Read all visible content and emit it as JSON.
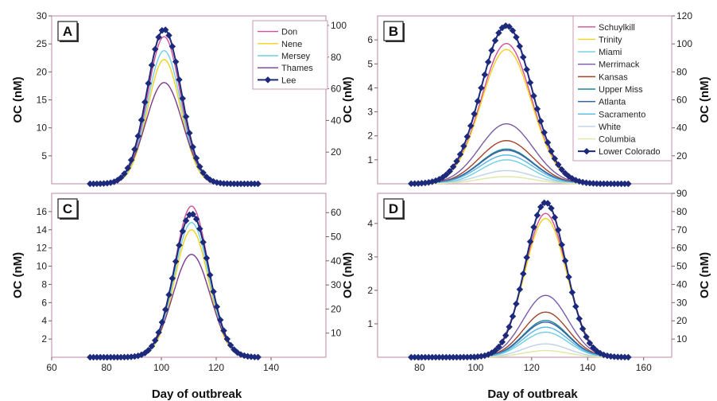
{
  "chart_data": [
    {
      "panel": "A",
      "type": "line",
      "xlabel": "",
      "ylabel": "OC (nM)",
      "xlim": [
        60,
        160
      ],
      "ylim": [
        0,
        30
      ],
      "y2lim": [
        0,
        106
      ],
      "yticks": [
        5,
        10,
        15,
        20,
        25,
        30
      ],
      "y2ticks": [
        20,
        40,
        60,
        80,
        100
      ],
      "xticks": [],
      "series": [
        {
          "name": "Don",
          "color": "#d24f9a",
          "axis": "left",
          "peak_x": 101,
          "peak": 26.3,
          "width": 6.0,
          "start": 74,
          "end": 136
        },
        {
          "name": "Nene",
          "color": "#f2d21e",
          "axis": "left",
          "peak_x": 101,
          "peak": 22.2,
          "width": 6.0,
          "start": 74,
          "end": 136
        },
        {
          "name": "Mersey",
          "color": "#6fcde6",
          "axis": "left",
          "peak_x": 101,
          "peak": 23.8,
          "width": 6.1,
          "start": 74,
          "end": 136
        },
        {
          "name": "Thames",
          "color": "#7a3c8c",
          "axis": "left",
          "peak_x": 101,
          "peak": 18.1,
          "width": 6.7,
          "start": 74,
          "end": 136
        },
        {
          "name": "Lee",
          "color": "#1d2a7c",
          "axis": "right",
          "peak_x": 101,
          "peak": 97.5,
          "width": 6.2,
          "start": 74,
          "end": 136,
          "markers": true
        }
      ]
    },
    {
      "panel": "B",
      "type": "line",
      "xlabel": "",
      "ylabel": "OC (nM)",
      "xlim": [
        65,
        170
      ],
      "ylim": [
        0,
        7
      ],
      "y2lim": [
        0,
        120
      ],
      "yticks": [
        1,
        2,
        3,
        4,
        5,
        6
      ],
      "y2ticks": [
        20,
        40,
        60,
        80,
        100,
        120
      ],
      "xticks": [],
      "series": [
        {
          "name": "Schuylkill",
          "color": "#d24f9a",
          "axis": "left",
          "peak_x": 111,
          "peak": 5.85,
          "width": 9.0,
          "start": 77,
          "end": 155
        },
        {
          "name": "Trinity",
          "color": "#f2d21e",
          "axis": "left",
          "peak_x": 111,
          "peak": 5.6,
          "width": 9.0,
          "start": 77,
          "end": 155
        },
        {
          "name": "Miami",
          "color": "#6fcde6",
          "axis": "left",
          "peak_x": 111,
          "peak": 1.0,
          "width": 9.0,
          "start": 77,
          "end": 155
        },
        {
          "name": "Merrimack",
          "color": "#7a5aa8",
          "axis": "left",
          "peak_x": 111,
          "peak": 2.5,
          "width": 9.5,
          "start": 77,
          "end": 155
        },
        {
          "name": "Kansas",
          "color": "#a4432b",
          "axis": "left",
          "peak_x": 111,
          "peak": 1.8,
          "width": 9.5,
          "start": 77,
          "end": 155
        },
        {
          "name": "Upper Miss",
          "color": "#1d8a94",
          "axis": "left",
          "peak_x": 111,
          "peak": 1.45,
          "width": 9.5,
          "start": 77,
          "end": 155
        },
        {
          "name": "Atlanta",
          "color": "#3a5fa8",
          "axis": "left",
          "peak_x": 111,
          "peak": 1.4,
          "width": 9.5,
          "start": 77,
          "end": 155
        },
        {
          "name": "Sacramento",
          "color": "#56b9e0",
          "axis": "left",
          "peak_x": 111,
          "peak": 1.2,
          "width": 9.5,
          "start": 77,
          "end": 155
        },
        {
          "name": "White",
          "color": "#bcd3e8",
          "axis": "left",
          "peak_x": 111,
          "peak": 0.55,
          "width": 9.5,
          "start": 77,
          "end": 155
        },
        {
          "name": "Columbia",
          "color": "#dfe7a6",
          "axis": "left",
          "peak_x": 111,
          "peak": 0.3,
          "width": 9.5,
          "start": 77,
          "end": 155
        },
        {
          "name": "Lower Colorado",
          "color": "#1d2a7c",
          "axis": "right",
          "peak_x": 111,
          "peak": 113,
          "width": 9.0,
          "start": 77,
          "end": 155,
          "markers": true
        }
      ]
    },
    {
      "panel": "C",
      "type": "line",
      "xlabel": "Day of outbreak",
      "ylabel": "OC (nM)",
      "xlim": [
        60,
        160
      ],
      "ylim": [
        0,
        18
      ],
      "y2lim": [
        0,
        68
      ],
      "yticks": [
        2,
        4,
        6,
        8,
        10,
        12,
        14,
        16
      ],
      "y2ticks": [
        10,
        20,
        30,
        40,
        50,
        60
      ],
      "xticks": [
        60,
        80,
        100,
        120,
        140
      ],
      "series": [
        {
          "name": "Don",
          "color": "#d24f9a",
          "axis": "left",
          "peak_x": 111,
          "peak": 16.6,
          "width": 6.2,
          "start": 74,
          "end": 136
        },
        {
          "name": "Nene",
          "color": "#f2d21e",
          "axis": "left",
          "peak_x": 111,
          "peak": 14.0,
          "width": 6.2,
          "start": 74,
          "end": 136
        },
        {
          "name": "Mersey",
          "color": "#6fcde6",
          "axis": "left",
          "peak_x": 111,
          "peak": 14.8,
          "width": 6.3,
          "start": 74,
          "end": 136
        },
        {
          "name": "Thames",
          "color": "#7a3c8c",
          "axis": "left",
          "peak_x": 111,
          "peak": 11.3,
          "width": 6.8,
          "start": 74,
          "end": 136
        },
        {
          "name": "Lee",
          "color": "#1d2a7c",
          "axis": "right",
          "peak_x": 111,
          "peak": 59.5,
          "width": 6.4,
          "start": 74,
          "end": 136,
          "markers": true
        }
      ]
    },
    {
      "panel": "D",
      "type": "line",
      "xlabel": "Day of outbreak",
      "ylabel": "OC (nM)",
      "xlim": [
        65,
        170
      ],
      "ylim": [
        0,
        4.9
      ],
      "y2lim": [
        0,
        90
      ],
      "yticks": [
        1,
        2,
        3,
        4
      ],
      "y2ticks": [
        10,
        20,
        30,
        40,
        50,
        60,
        70,
        80,
        90
      ],
      "xticks": [
        80,
        100,
        120,
        140,
        160
      ],
      "series": [
        {
          "name": "Schuylkill",
          "color": "#d24f9a",
          "axis": "left",
          "peak_x": 125,
          "peak": 4.3,
          "width": 7.5,
          "start": 77,
          "end": 155
        },
        {
          "name": "Trinity",
          "color": "#f2d21e",
          "axis": "left",
          "peak_x": 125,
          "peak": 4.15,
          "width": 7.5,
          "start": 77,
          "end": 155
        },
        {
          "name": "Miami",
          "color": "#6fcde6",
          "axis": "left",
          "peak_x": 125,
          "peak": 0.75,
          "width": 8.0,
          "start": 77,
          "end": 155
        },
        {
          "name": "Merrimack",
          "color": "#7a5aa8",
          "axis": "left",
          "peak_x": 125,
          "peak": 1.85,
          "width": 8.0,
          "start": 77,
          "end": 155
        },
        {
          "name": "Kansas",
          "color": "#a4432b",
          "axis": "left",
          "peak_x": 125,
          "peak": 1.35,
          "width": 8.0,
          "start": 77,
          "end": 155
        },
        {
          "name": "Upper Miss",
          "color": "#1d8a94",
          "axis": "left",
          "peak_x": 125,
          "peak": 1.1,
          "width": 8.0,
          "start": 77,
          "end": 155
        },
        {
          "name": "Atlanta",
          "color": "#3a5fa8",
          "axis": "left",
          "peak_x": 125,
          "peak": 1.05,
          "width": 8.0,
          "start": 77,
          "end": 155
        },
        {
          "name": "Sacramento",
          "color": "#56b9e0",
          "axis": "left",
          "peak_x": 125,
          "peak": 0.9,
          "width": 8.0,
          "start": 77,
          "end": 155
        },
        {
          "name": "White",
          "color": "#bcd3e8",
          "axis": "left",
          "peak_x": 125,
          "peak": 0.4,
          "width": 8.0,
          "start": 77,
          "end": 155
        },
        {
          "name": "Columbia",
          "color": "#dfe7a6",
          "axis": "left",
          "peak_x": 125,
          "peak": 0.2,
          "width": 8.0,
          "start": 77,
          "end": 155
        },
        {
          "name": "Lower Colorado",
          "color": "#1d2a7c",
          "axis": "right",
          "peak_x": 125,
          "peak": 85,
          "width": 7.2,
          "start": 77,
          "end": 155,
          "markers": true
        }
      ]
    }
  ]
}
